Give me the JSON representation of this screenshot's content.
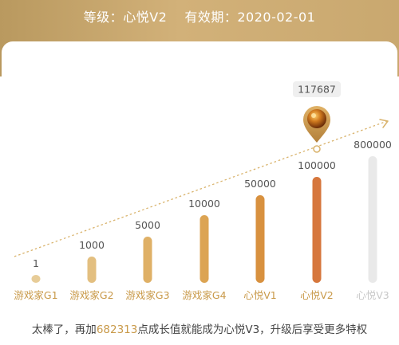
{
  "header": {
    "level_label": "等级：",
    "level_value": "心悦V2",
    "validity_label": "有效期：",
    "validity_value": "2020-02-01"
  },
  "chart_data": {
    "type": "bar",
    "categories": [
      "游戏家G1",
      "游戏家G2",
      "游戏家G3",
      "游戏家G4",
      "心悦V1",
      "心悦V2",
      "心悦V3"
    ],
    "values": [
      1,
      1000,
      5000,
      10000,
      50000,
      100000,
      800000
    ],
    "value_labels": [
      "1",
      "1000",
      "5000",
      "10000",
      "50000",
      "100000",
      "800000"
    ],
    "current_level_index": 5,
    "current_points": 117687,
    "current_points_label": "117687",
    "colors": {
      "bars": [
        "#e7cc98",
        "#e3bf80",
        "#dfb066",
        "#dca453",
        "#d8913f",
        "#d6773d",
        "#e9e9e9"
      ],
      "reached_label": "#c99a4a",
      "unreached_label": "#c8c8c8",
      "arrow": "#d9b36c",
      "badge_bg": "#efefef",
      "badge_text": "#555555"
    }
  },
  "footer": {
    "prefix": "太棒了，再加",
    "points_needed": "682313",
    "suffix": "点成长值就能成为心悦V3，升级后享受更多特权"
  }
}
